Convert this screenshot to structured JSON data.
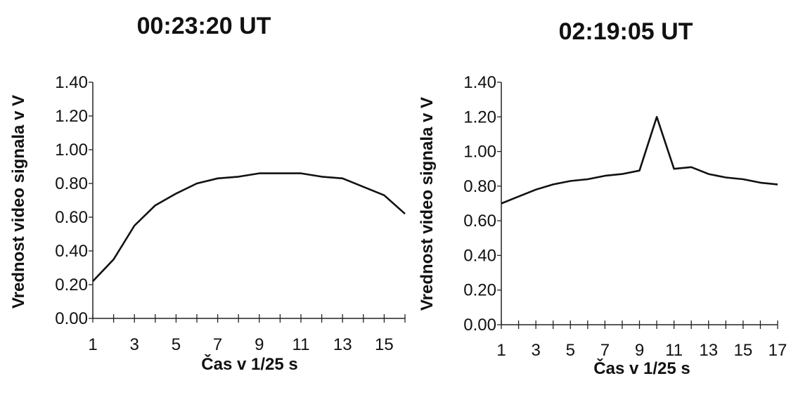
{
  "chart_data": [
    {
      "type": "line",
      "title": "00:23:20 UT",
      "xlabel": "Čas v 1/25 s",
      "ylabel": "Vrednost video signala v V",
      "ylim": [
        0,
        1.4
      ],
      "xlim": [
        1,
        16
      ],
      "yticks": [
        "0.00",
        "0.20",
        "0.40",
        "0.60",
        "0.80",
        "1.00",
        "1.20",
        "1.40"
      ],
      "xticks": [
        "1",
        "3",
        "5",
        "7",
        "9",
        "11",
        "13",
        "15"
      ],
      "x": [
        1,
        2,
        3,
        4,
        5,
        6,
        7,
        8,
        9,
        10,
        11,
        12,
        13,
        14,
        15,
        16
      ],
      "values": [
        0.22,
        0.35,
        0.55,
        0.67,
        0.74,
        0.8,
        0.83,
        0.84,
        0.86,
        0.86,
        0.86,
        0.84,
        0.83,
        0.78,
        0.73,
        0.62
      ],
      "grid": false
    },
    {
      "type": "line",
      "title": "02:19:05 UT",
      "xlabel": "Čas v 1/25 s",
      "ylabel": "Vrednost video signala v V",
      "ylim": [
        0,
        1.4
      ],
      "xlim": [
        1,
        17
      ],
      "yticks": [
        "0.00",
        "0.20",
        "0.40",
        "0.60",
        "0.80",
        "1.00",
        "1.20",
        "1.40"
      ],
      "xticks": [
        "1",
        "3",
        "5",
        "7",
        "9",
        "11",
        "13",
        "15",
        "17"
      ],
      "x": [
        1,
        2,
        3,
        4,
        5,
        6,
        7,
        8,
        9,
        10,
        11,
        12,
        13,
        14,
        15,
        16,
        17
      ],
      "values": [
        0.7,
        0.74,
        0.78,
        0.81,
        0.83,
        0.84,
        0.86,
        0.87,
        0.89,
        1.2,
        0.9,
        0.91,
        0.87,
        0.85,
        0.84,
        0.82,
        0.81
      ],
      "grid": false
    }
  ]
}
